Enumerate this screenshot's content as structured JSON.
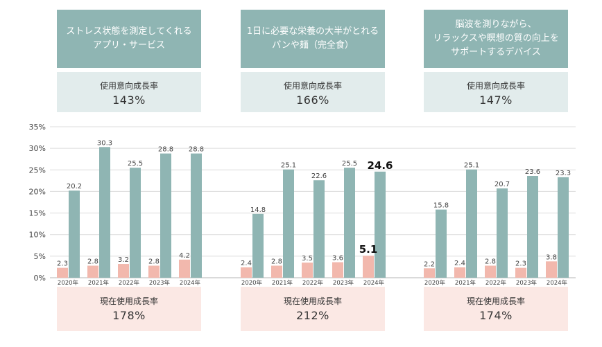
{
  "chart_data": {
    "type": "bar",
    "y_axis": {
      "range": [
        0,
        35
      ],
      "ticks": [
        "0%",
        "5%",
        "10%",
        "15%",
        "20%",
        "25%",
        "30%",
        "35%"
      ],
      "grid": true
    },
    "colors": {
      "current_usage": "#f2b8ad",
      "usage_intent": "#8fb5b3"
    },
    "panels": [
      {
        "title": "ストレス状態を測定してくれる\nアプリ・サービス",
        "intent_label": "使用意向成長率",
        "intent_value": "143%",
        "usage_label": "現在使用成長率",
        "usage_value": "178%",
        "categories": [
          "2020年",
          "2021年",
          "2022年",
          "2023年",
          "2024年"
        ],
        "series": [
          {
            "values": [
              2.3,
              2.8,
              3.2,
              2.8,
              4.2
            ],
            "labels": [
              "2.3",
              "2.8",
              "3.2",
              "2.8",
              "4.2"
            ]
          },
          {
            "values": [
              20.2,
              30.3,
              25.5,
              28.8,
              28.8
            ],
            "labels": [
              "20.2",
              "30.3",
              "25.5",
              "28.8",
              "28.8"
            ]
          }
        ]
      },
      {
        "title": "1日に必要な栄養の大半がとれる\nパンや麺（完全食）",
        "intent_label": "使用意向成長率",
        "intent_value": "166%",
        "usage_label": "現在使用成長率",
        "usage_value": "212%",
        "categories": [
          "2020年",
          "2021年",
          "2022年",
          "2023年",
          "2024年"
        ],
        "series": [
          {
            "values": [
              2.4,
              2.8,
              3.5,
              3.6,
              5.1
            ],
            "labels": [
              "2.4",
              "2.8",
              "3.5",
              "3.6",
              "5.1"
            ]
          },
          {
            "values": [
              14.8,
              25.1,
              22.6,
              25.5,
              24.6
            ],
            "labels": [
              "14.8",
              "25.1",
              "22.6",
              "25.5",
              "24.6"
            ]
          }
        ]
      },
      {
        "title": "脳波を測りながら、\nリラックスや瞑想の質の向上を\nサポートするデバイス",
        "intent_label": "使用意向成長率",
        "intent_value": "147%",
        "usage_label": "現在使用成長率",
        "usage_value": "174%",
        "categories": [
          "2020年",
          "2021年",
          "2022年",
          "2023年",
          "2024年"
        ],
        "series": [
          {
            "values": [
              2.2,
              2.4,
              2.8,
              2.3,
              3.8
            ],
            "labels": [
              "2.2",
              "2.4",
              "2.8",
              "2.3",
              "3.8"
            ]
          },
          {
            "values": [
              15.8,
              25.1,
              20.7,
              23.6,
              23.3
            ],
            "labels": [
              "15.8",
              "25.1",
              "20.7",
              "23.6",
              "23.3"
            ]
          }
        ]
      }
    ]
  }
}
